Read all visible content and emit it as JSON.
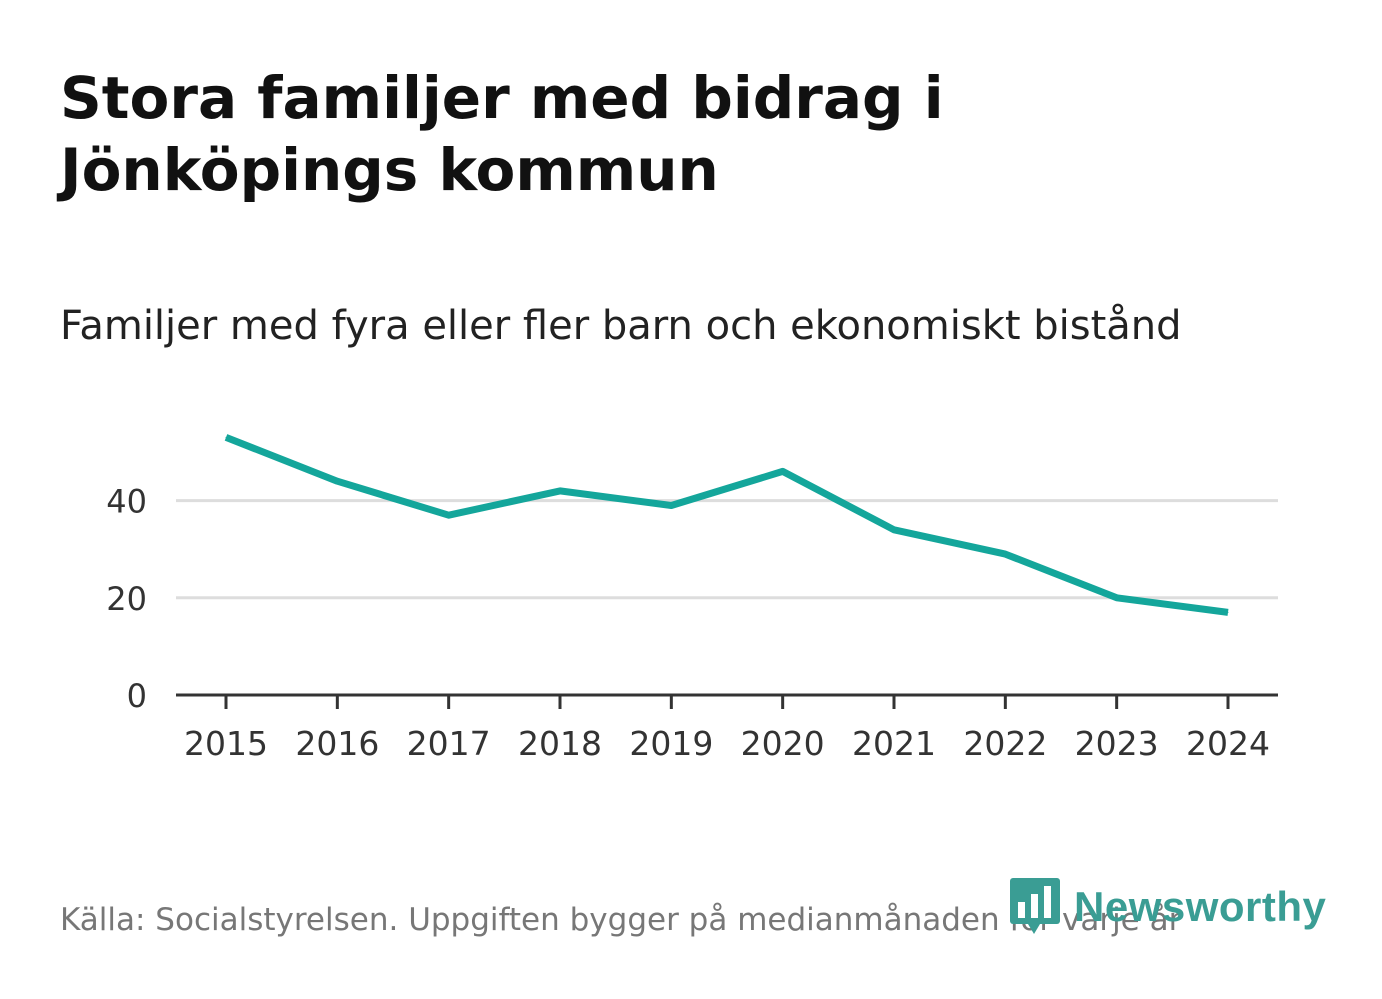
{
  "header": {
    "title": "Stora familjer med bidrag i Jönköpings kommun",
    "subtitle": "Familjer med fyra eller fler barn och ekonomiskt bistånd"
  },
  "footer": {
    "source": "Källa: Socialstyrelsen. Uppgiften bygger på medianmånaden för varje år",
    "brand": "Newsworthy"
  },
  "colors": {
    "line": "#14a69b",
    "grid": "#dddddd",
    "axis": "#333333",
    "tick_text": "#333333",
    "brand": "#3a9d94"
  },
  "chart_data": {
    "type": "line",
    "title": "Familjer med fyra eller fler barn och ekonomiskt bistånd",
    "categories": [
      "2015",
      "2016",
      "2017",
      "2018",
      "2019",
      "2020",
      "2021",
      "2022",
      "2023",
      "2024"
    ],
    "series": [
      {
        "name": "Familjer med fyra eller fler barn och ekonomiskt bistånd",
        "values": [
          53,
          44,
          37,
          42,
          39,
          46,
          34,
          29,
          20,
          17
        ]
      }
    ],
    "y_ticks": [
      0,
      20,
      40
    ],
    "ylim": [
      0,
      56
    ],
    "xlabel": "",
    "ylabel": "",
    "grid": true
  }
}
